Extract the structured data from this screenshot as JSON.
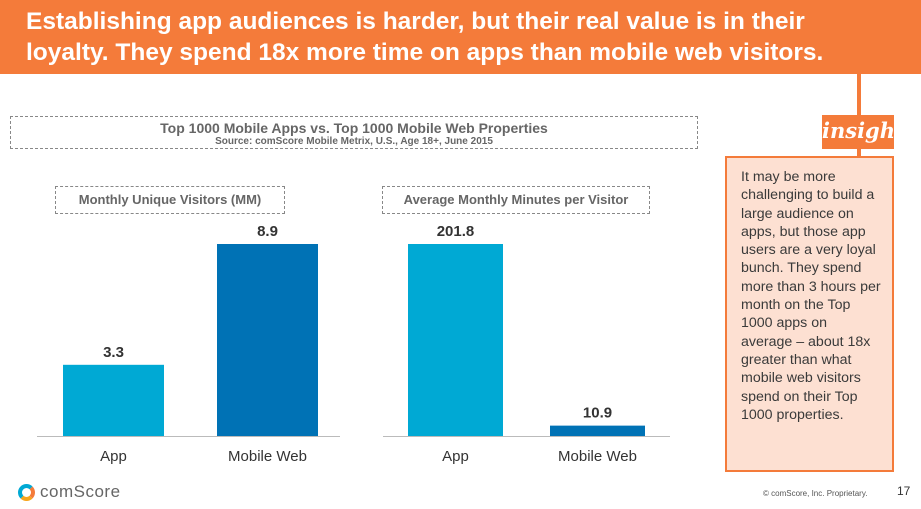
{
  "header": {
    "line1": "Establishing app audiences is harder, but their real value is in their",
    "line2": "loyalty. They spend 18x more time on apps than mobile web visitors."
  },
  "chart_title": "Top 1000 Mobile Apps vs. Top 1000 Mobile Web Properties",
  "chart_source": "Source: comScore Mobile Metrix, U.S., Age 18+, June 2015",
  "colors": {
    "app": "#00a9d4",
    "mobile_web": "#0072b5",
    "accent": "#f47b3a",
    "insight_bg": "#fde0d2"
  },
  "chart_data": [
    {
      "type": "bar",
      "title": "Monthly Unique Visitors (MM)",
      "categories": [
        "App",
        "Mobile Web"
      ],
      "values": [
        3.3,
        8.9
      ],
      "data_labels": [
        "3.3",
        "8.9"
      ],
      "ylim": [
        0,
        8.9
      ],
      "grid": false
    },
    {
      "type": "bar",
      "title": "Average Monthly Minutes per Visitor",
      "categories": [
        "App",
        "Mobile Web"
      ],
      "values": [
        201.8,
        10.9
      ],
      "data_labels": [
        "201.8",
        "10.9"
      ],
      "ylim": [
        0,
        201.8
      ],
      "grid": false
    }
  ],
  "insight": {
    "tag": "insight",
    "text": "It may be more challenging to build a large audience on apps, but those app users are a very loyal bunch. They spend more than 3 hours per month on the Top 1000 apps on average – about 18x greater than what mobile web visitors spend on their Top 1000 properties."
  },
  "footer": {
    "logo": "comScore",
    "copyright": "© comScore, Inc. Proprietary.",
    "page": "17"
  }
}
